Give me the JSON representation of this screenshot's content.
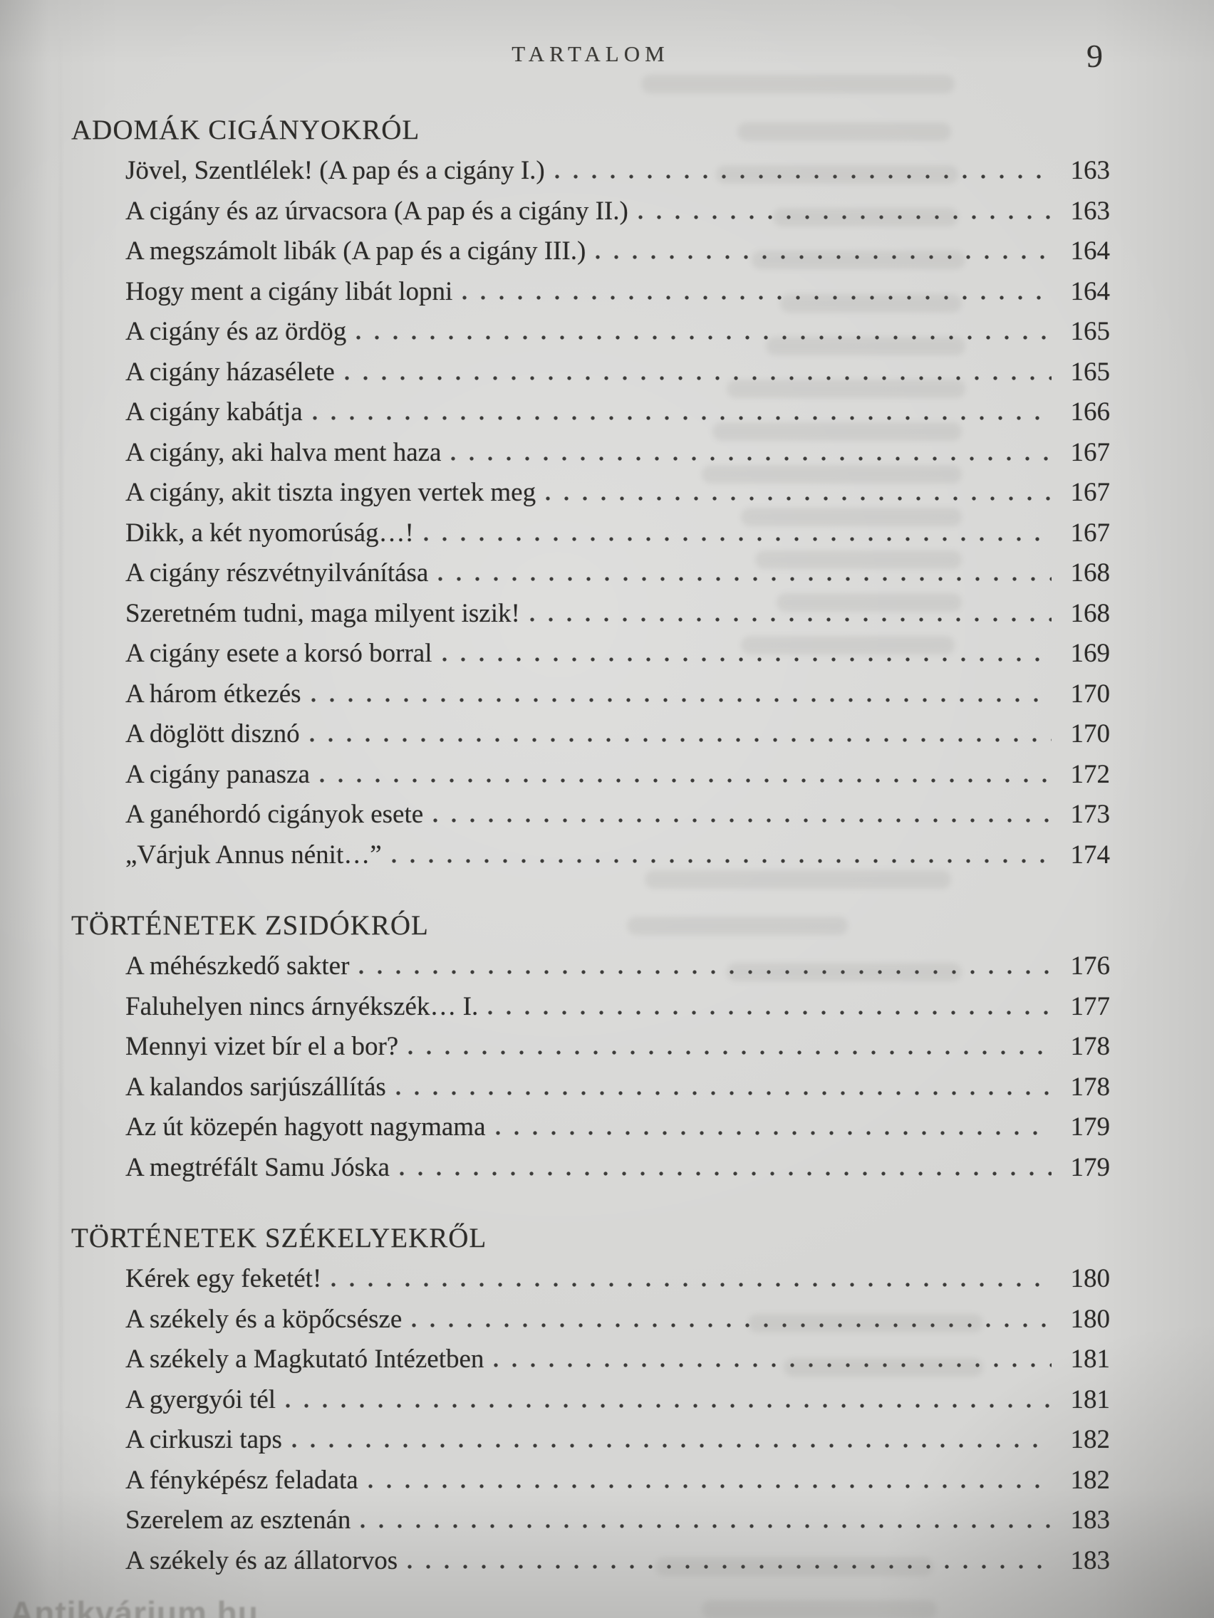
{
  "page": {
    "header_title": "TARTALOM",
    "page_number": "9",
    "watermark": "Antikvárium.hu"
  },
  "sections": [
    {
      "heading": "ADOMÁK CIGÁNYOKRÓL",
      "entries": [
        {
          "title": "Jövel, Szentlélek! (A pap és a cigány I.)",
          "page": "163"
        },
        {
          "title": "A cigány és az úrvacsora (A pap és a cigány II.)",
          "page": "163"
        },
        {
          "title": "A megszámolt libák (A pap és a cigány III.)",
          "page": "164"
        },
        {
          "title": "Hogy ment a cigány libát lopni",
          "page": "164"
        },
        {
          "title": "A cigány és az ördög",
          "page": "165"
        },
        {
          "title": "A cigány házasélete",
          "page": "165"
        },
        {
          "title": "A cigány kabátja",
          "page": "166"
        },
        {
          "title": "A cigány, aki halva ment haza",
          "page": "167"
        },
        {
          "title": "A cigány, akit tiszta ingyen vertek meg",
          "page": "167"
        },
        {
          "title": "Dikk, a két nyomorúság…!",
          "page": "167"
        },
        {
          "title": "A cigány részvétnyilvánítása",
          "page": "168"
        },
        {
          "title": "Szeretném tudni, maga milyent iszik!",
          "page": "168"
        },
        {
          "title": "A cigány esete a korsó borral",
          "page": "169"
        },
        {
          "title": "A három étkezés",
          "page": "170"
        },
        {
          "title": "A döglött disznó",
          "page": "170"
        },
        {
          "title": "A cigány panasza",
          "page": "172"
        },
        {
          "title": "A ganéhordó cigányok esete",
          "page": "173"
        },
        {
          "title": "„Várjuk Annus nénit…”",
          "page": "174"
        }
      ]
    },
    {
      "heading": "TÖRTÉNETEK ZSIDÓKRÓL",
      "entries": [
        {
          "title": "A méhészkedő sakter",
          "page": "176"
        },
        {
          "title": "Faluhelyen nincs árnyékszék… I.",
          "page": "177"
        },
        {
          "title": "Mennyi vizet bír el a bor?",
          "page": "178"
        },
        {
          "title": "A kalandos sarjúszállítás",
          "page": "178"
        },
        {
          "title": "Az út közepén hagyott nagymama",
          "page": "179"
        },
        {
          "title": "A megtréfált Samu Jóska",
          "page": "179"
        }
      ]
    },
    {
      "heading": "TÖRTÉNETEK SZÉKELYEKRŐL",
      "entries": [
        {
          "title": "Kérek egy feketét!",
          "page": "180"
        },
        {
          "title": "A székely és a köpőcsésze",
          "page": "180"
        },
        {
          "title": "A székely a Magkutató Intézetben",
          "page": "181"
        },
        {
          "title": "A gyergyói tél",
          "page": "181"
        },
        {
          "title": "A cirkuszi taps",
          "page": "182"
        },
        {
          "title": "A fényképész feladata",
          "page": "182"
        },
        {
          "title": "Szerelem az esztenán",
          "page": "183"
        },
        {
          "title": "A székely és az állatorvos",
          "page": "183"
        }
      ]
    }
  ]
}
